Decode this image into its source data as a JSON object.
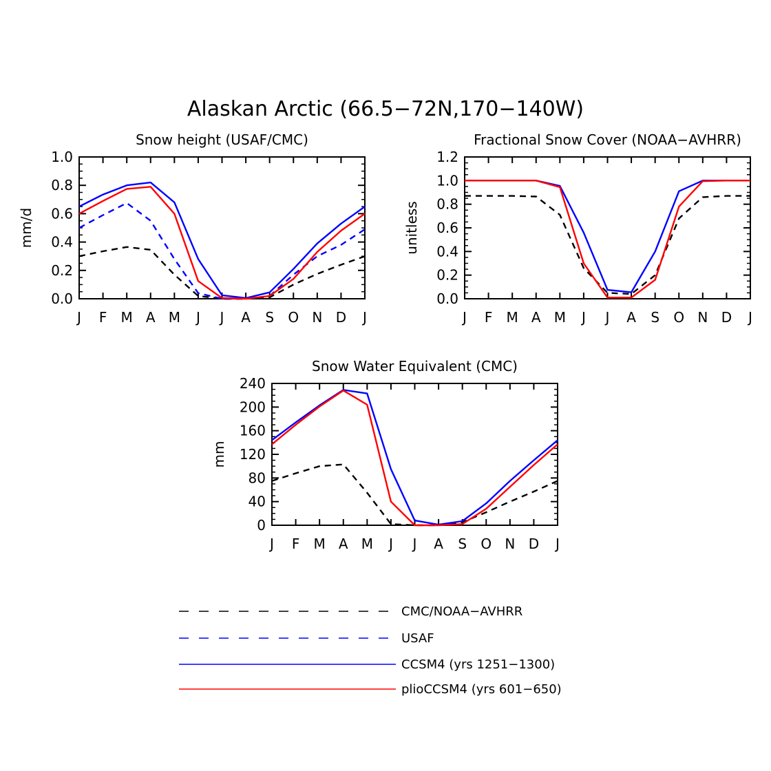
{
  "title": "Alaskan Arctic (66.5−72N,170−140W)",
  "colors": {
    "black": "#000000",
    "blue": "#0000ff",
    "red": "#ff0000"
  },
  "legend": [
    {
      "label": "CMC/NOAA−AVHRR",
      "color": "#000000",
      "dash": "dashed-long"
    },
    {
      "label": "USAF",
      "color": "#0000ff",
      "dash": "dashed-long"
    },
    {
      "label": "CCSM4 (yrs 1251−1300)",
      "color": "#0000ff",
      "dash": "solid"
    },
    {
      "label": "plioCCSM4 (yrs 601−650)",
      "color": "#ff0000",
      "dash": "solid"
    }
  ],
  "chart_data": [
    {
      "type": "line",
      "title": "Snow height (USAF/CMC)",
      "xlabel": "",
      "ylabel": "mm/d",
      "categories": [
        "J",
        "F",
        "M",
        "A",
        "M",
        "J",
        "J",
        "A",
        "S",
        "O",
        "N",
        "D",
        "J"
      ],
      "ylim": [
        0,
        1.0
      ],
      "yticks": [
        0.0,
        0.2,
        0.4,
        0.6,
        0.8,
        1.0
      ],
      "ytick_labels": [
        "0.0",
        "0.2",
        "0.4",
        "0.6",
        "0.8",
        "1.0"
      ],
      "series": [
        {
          "name": "CMC/NOAA-AVHRR",
          "style": "dashed",
          "color": "#000000",
          "values": [
            0.3,
            0.335,
            0.365,
            0.345,
            0.17,
            0.02,
            0.0,
            0.0,
            0.01,
            0.1,
            0.175,
            0.24,
            0.3
          ]
        },
        {
          "name": "USAF",
          "style": "dashed",
          "color": "#0000ff",
          "values": [
            0.5,
            0.59,
            0.675,
            0.55,
            0.28,
            0.04,
            0.0,
            0.0,
            0.02,
            0.17,
            0.3,
            0.38,
            0.49
          ]
        },
        {
          "name": "CCSM4",
          "style": "solid",
          "color": "#0000ff",
          "values": [
            0.65,
            0.735,
            0.8,
            0.82,
            0.68,
            0.28,
            0.025,
            0.005,
            0.045,
            0.21,
            0.39,
            0.53,
            0.65
          ]
        },
        {
          "name": "plioCCSM4",
          "style": "solid",
          "color": "#ff0000",
          "values": [
            0.6,
            0.69,
            0.775,
            0.79,
            0.6,
            0.125,
            0.005,
            0.0,
            0.02,
            0.14,
            0.33,
            0.48,
            0.6
          ]
        }
      ]
    },
    {
      "type": "line",
      "title": "Fractional Snow Cover (NOAA−AVHRR)",
      "xlabel": "",
      "ylabel": "unitless",
      "categories": [
        "J",
        "F",
        "M",
        "A",
        "M",
        "J",
        "J",
        "A",
        "S",
        "O",
        "N",
        "D",
        "J"
      ],
      "ylim": [
        0,
        1.2
      ],
      "yticks": [
        0.0,
        0.2,
        0.4,
        0.6,
        0.8,
        1.0,
        1.2
      ],
      "ytick_labels": [
        "0.0",
        "0.2",
        "0.4",
        "0.6",
        "0.8",
        "1.0",
        "1.2"
      ],
      "series": [
        {
          "name": "CMC/NOAA-AVHRR",
          "style": "dashed",
          "color": "#000000",
          "values": [
            0.87,
            0.87,
            0.87,
            0.865,
            0.71,
            0.26,
            0.05,
            0.04,
            0.2,
            0.68,
            0.86,
            0.87,
            0.87
          ]
        },
        {
          "name": "CCSM4",
          "style": "solid",
          "color": "#0000ff",
          "values": [
            1.0,
            1.0,
            1.0,
            1.0,
            0.955,
            0.56,
            0.075,
            0.055,
            0.4,
            0.91,
            1.0,
            1.0,
            1.0
          ]
        },
        {
          "name": "plioCCSM4",
          "style": "solid",
          "color": "#ff0000",
          "values": [
            1.0,
            1.0,
            1.0,
            1.0,
            0.945,
            0.3,
            0.01,
            0.01,
            0.16,
            0.78,
            0.995,
            1.0,
            1.0
          ]
        }
      ]
    },
    {
      "type": "line",
      "title": "Snow Water Equivalent (CMC)",
      "xlabel": "",
      "ylabel": "mm",
      "categories": [
        "J",
        "F",
        "M",
        "A",
        "M",
        "J",
        "J",
        "A",
        "S",
        "O",
        "N",
        "D",
        "J"
      ],
      "ylim": [
        0,
        240
      ],
      "yticks": [
        0,
        40,
        80,
        120,
        160,
        200,
        240
      ],
      "ytick_labels": [
        "0",
        "40",
        "80",
        "120",
        "160",
        "200",
        "240"
      ],
      "series": [
        {
          "name": "CMC/NOAA-AVHRR",
          "style": "dashed",
          "color": "#000000",
          "values": [
            75,
            88,
            100,
            103,
            55,
            2,
            0,
            0,
            5,
            22,
            40,
            57,
            75
          ]
        },
        {
          "name": "CCSM4",
          "style": "solid",
          "color": "#0000ff",
          "values": [
            144,
            174,
            203,
            229,
            223,
            95,
            8,
            1,
            7,
            37,
            75,
            110,
            144
          ]
        },
        {
          "name": "plioCCSM4",
          "style": "solid",
          "color": "#ff0000",
          "values": [
            137,
            170,
            201,
            228,
            204,
            40,
            0,
            0,
            2,
            28,
            65,
            102,
            137
          ]
        }
      ]
    }
  ]
}
